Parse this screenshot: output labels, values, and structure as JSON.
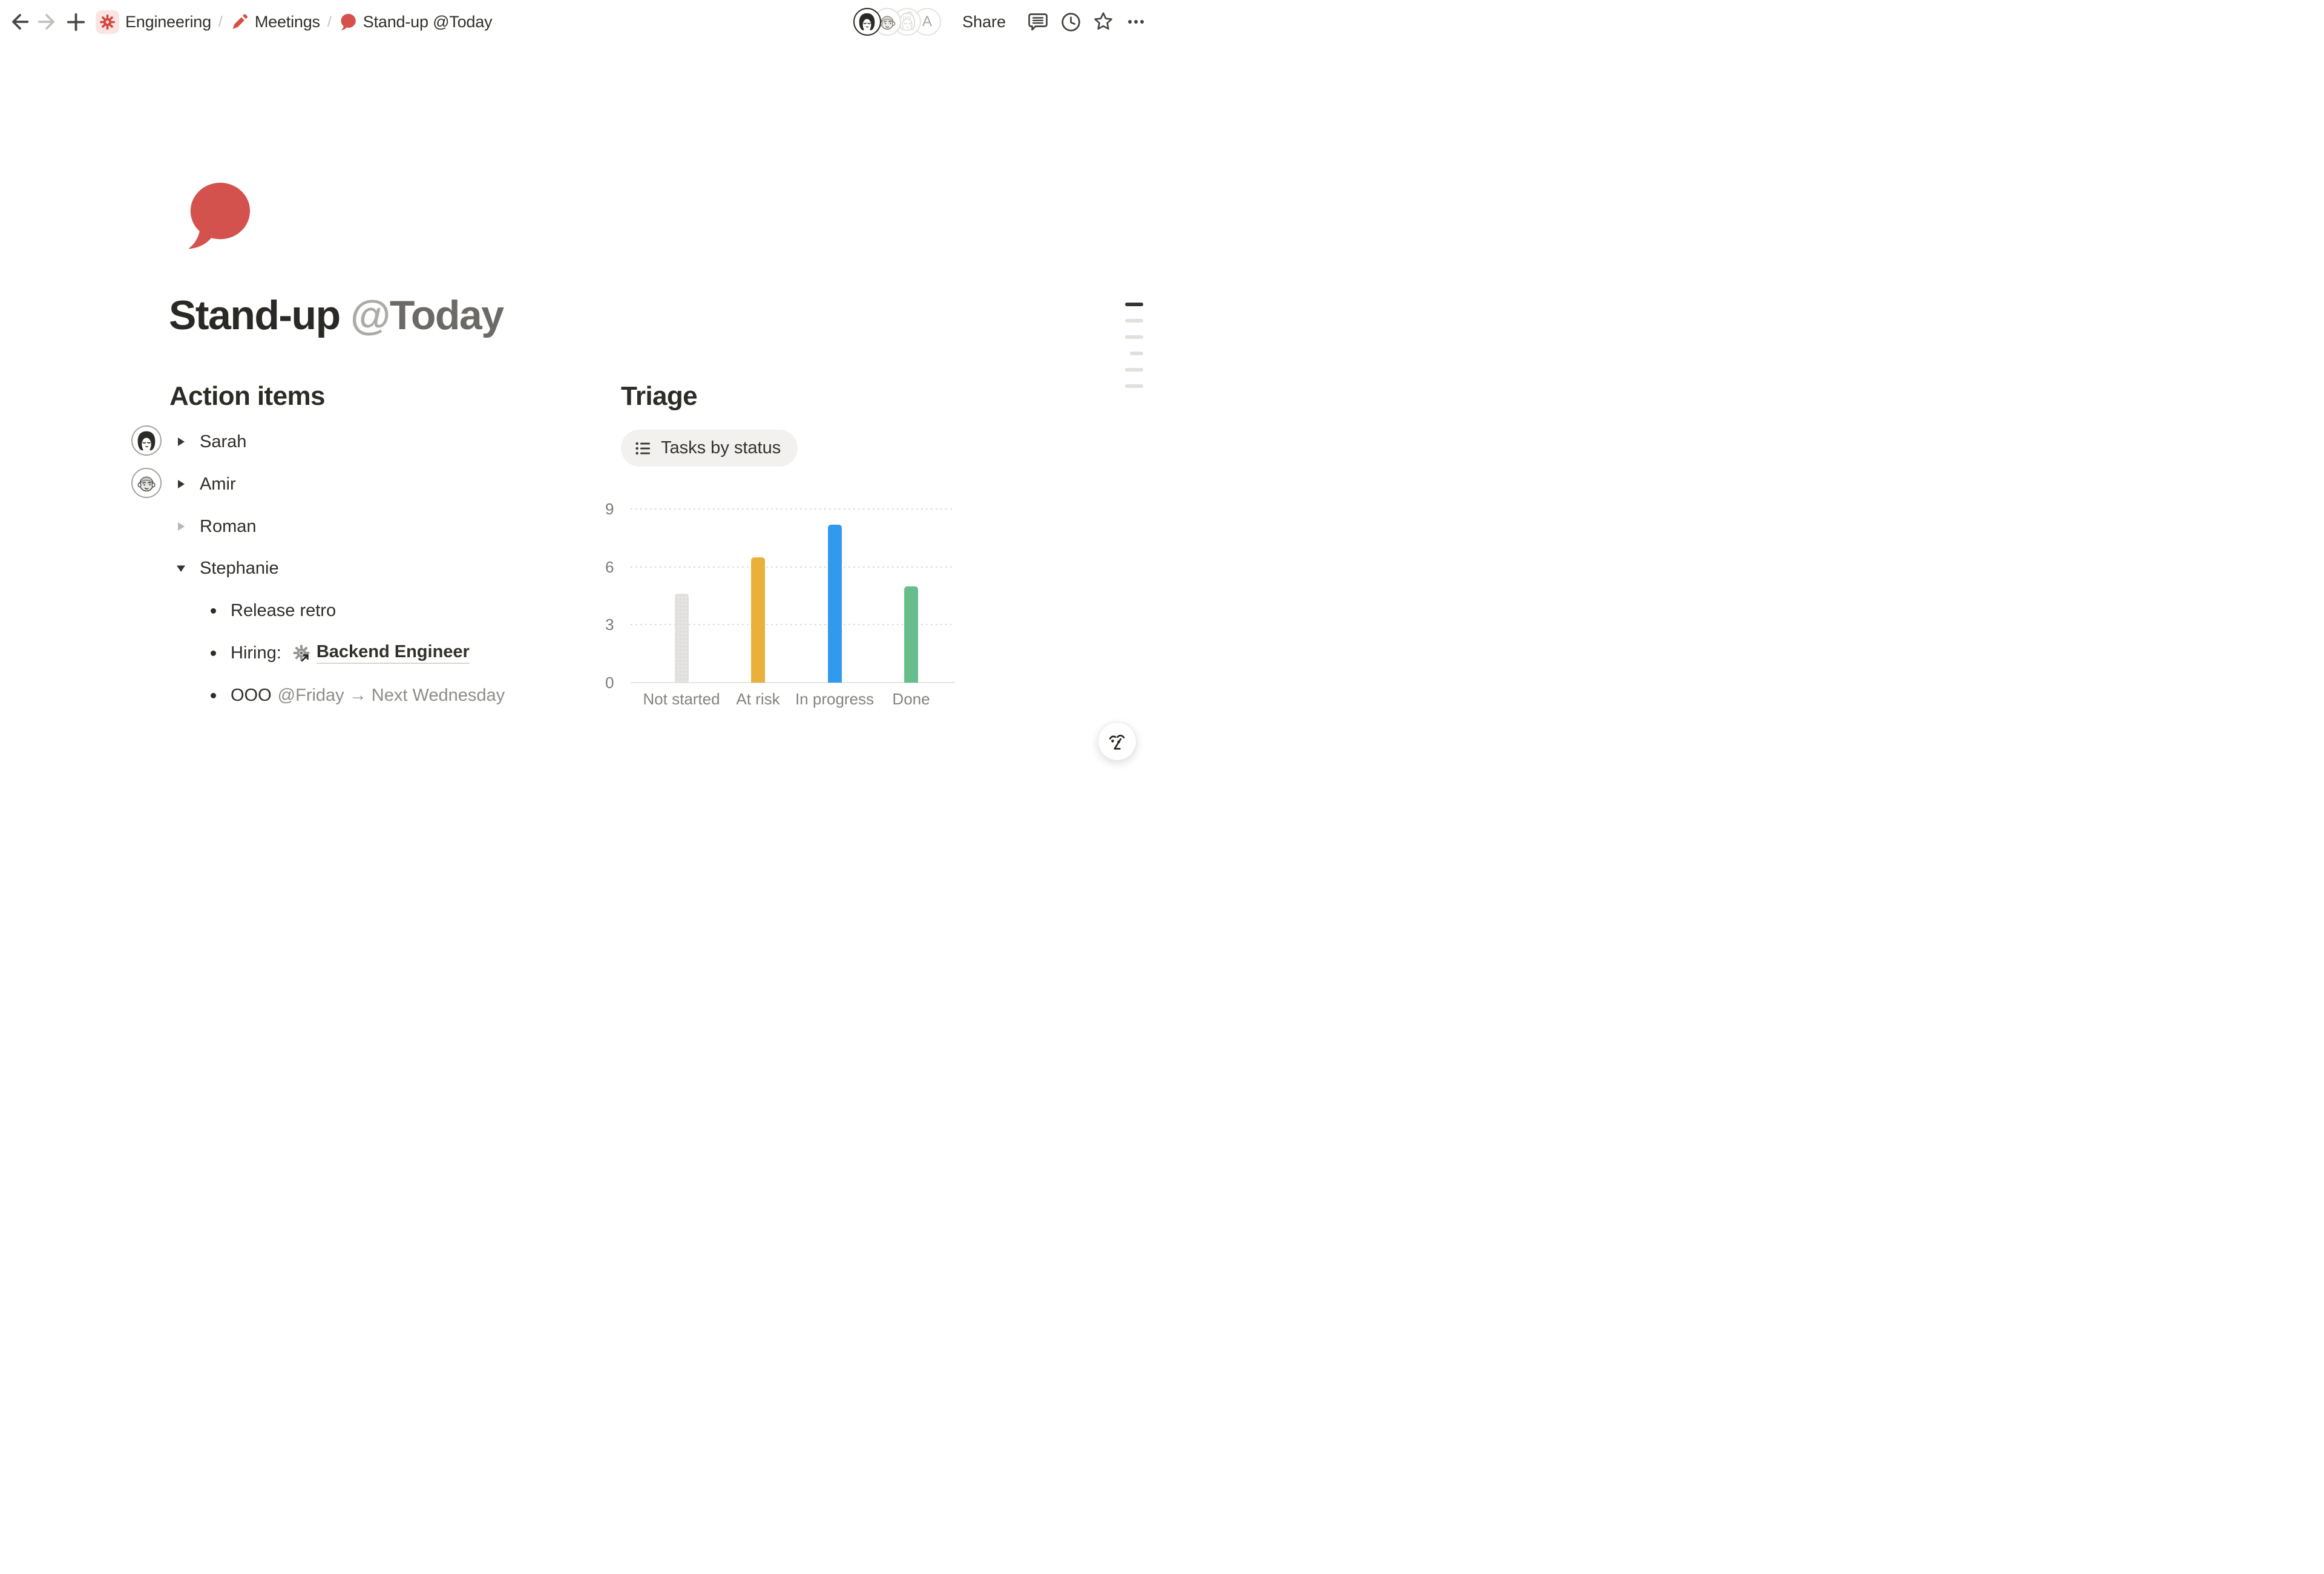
{
  "toolbar": {
    "breadcrumb": {
      "separator": "/",
      "items": [
        {
          "label": "Engineering",
          "icon": "gear-icon"
        },
        {
          "label": "Meetings",
          "icon": "pencil-icon"
        },
        {
          "label": "Stand-up @Today",
          "icon": "speech-bubble-icon"
        }
      ]
    },
    "share_label": "Share",
    "presence": {
      "letter_badge": "A"
    }
  },
  "page": {
    "icon": "speech-bubble",
    "title": {
      "main": "Stand-up ",
      "mention_at": "@",
      "mention_date": "Today"
    }
  },
  "action_items": {
    "heading": "Action items",
    "people": [
      {
        "name": "Sarah",
        "state": "collapsed",
        "has_avatar": true
      },
      {
        "name": "Amir",
        "state": "collapsed",
        "has_avatar": true
      },
      {
        "name": "Roman",
        "state": "collapsed-muted",
        "has_avatar": false
      },
      {
        "name": "Stephanie",
        "state": "expanded",
        "has_avatar": false
      }
    ],
    "sub_items": [
      {
        "text": "Release retro"
      },
      {
        "prefix": "Hiring:",
        "link": "Backend Engineer"
      },
      {
        "prefix": "OOO ",
        "date_range": "@Friday → Next Wednesday"
      }
    ]
  },
  "triage": {
    "heading": "Triage",
    "view_chip": "Tasks by status"
  },
  "chart_data": {
    "type": "bar",
    "title": "Tasks by status",
    "categories": [
      "Not started",
      "At risk",
      "In progress",
      "Done"
    ],
    "values": [
      4.6,
      6.5,
      8.2,
      5.0
    ],
    "colors": [
      "#E5E3E1",
      "#E9B13C",
      "#309BEE",
      "#65BE8C"
    ],
    "bar_styles": [
      "dotted",
      "solid",
      "solid",
      "solid"
    ],
    "ylim": [
      0,
      9
    ],
    "yticks": [
      0,
      3,
      6,
      9
    ],
    "grid": "dotted-horizontal",
    "legend": "none",
    "xlabel": "",
    "ylabel": ""
  },
  "colors": {
    "accent_red": "#D4524D",
    "chip_bg": "#FBE5E3",
    "muted_text": "#8F8D89",
    "bar_gray": "#E5E3E1",
    "bar_yellow": "#E9B13C",
    "bar_blue": "#309BEE",
    "bar_green": "#65BE8C"
  }
}
